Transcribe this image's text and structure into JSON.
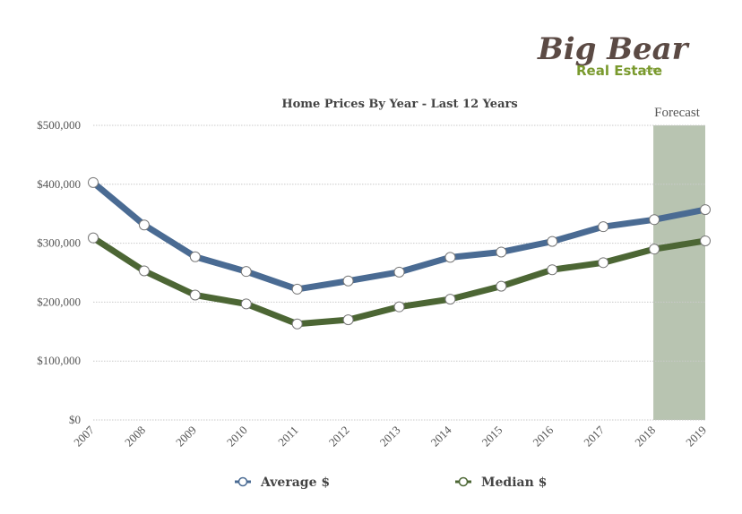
{
  "logo": {
    "line1": "Big Bear",
    "line2": "Real Estate",
    "suffix": ".com"
  },
  "chart_data": {
    "type": "line",
    "title": "Home Prices By Year - Last 12 Years",
    "xlabel": "",
    "ylabel": "",
    "categories": [
      "2007",
      "2008",
      "2009",
      "2010",
      "2011",
      "2012",
      "2013",
      "2014",
      "2015",
      "2016",
      "2017",
      "2018",
      "2019"
    ],
    "ylim": [
      0,
      500000
    ],
    "yticks": [
      0,
      100000,
      200000,
      300000,
      400000,
      500000
    ],
    "ytick_labels": [
      "$0",
      "$100,000",
      "$200,000",
      "$300,000",
      "$400,000",
      "$500,000"
    ],
    "grid": true,
    "forecast": {
      "label": "Forecast",
      "from": "2018",
      "to": "2019",
      "color": "#b8c4b1"
    },
    "series": [
      {
        "name": "Average $",
        "color": "#4a6b93",
        "values": [
          403000,
          331000,
          277000,
          252000,
          222000,
          236000,
          251000,
          276000,
          285000,
          303000,
          328000,
          340000,
          357000
        ]
      },
      {
        "name": "Median $",
        "color": "#4c6634",
        "values": [
          309000,
          253000,
          212000,
          197000,
          163000,
          170000,
          192000,
          205000,
          227000,
          255000,
          267000,
          290000,
          304000
        ]
      }
    ],
    "legend_position": "bottom"
  }
}
